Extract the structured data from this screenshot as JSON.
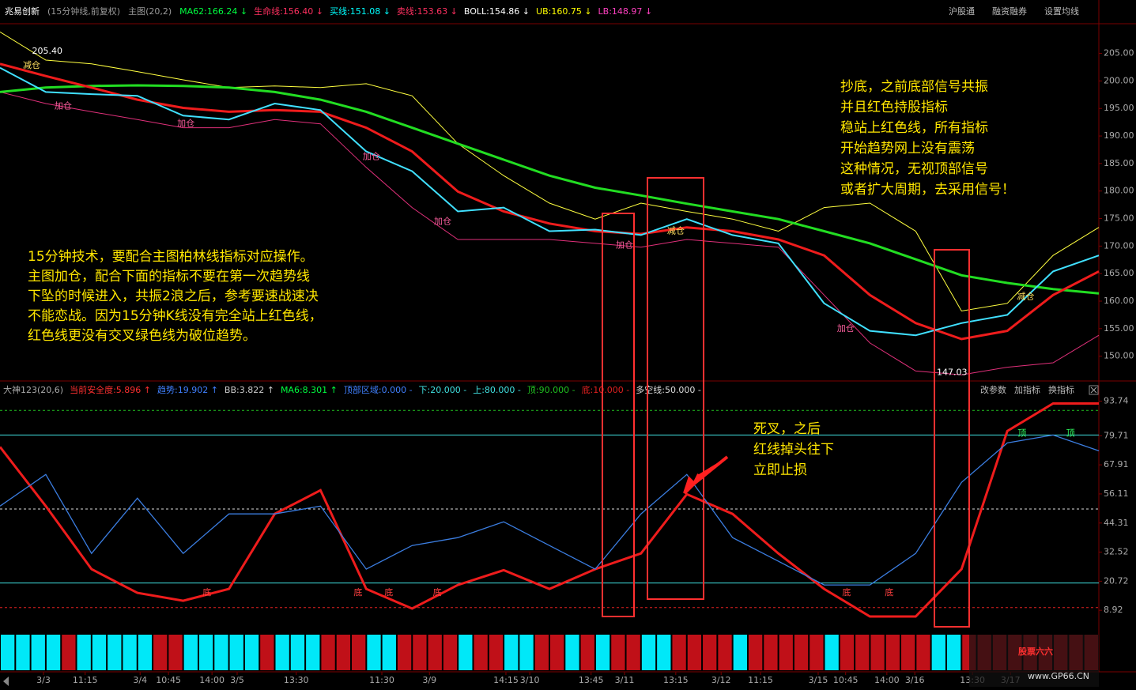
{
  "header": {
    "stock": "兆易创新",
    "period": "(15分钟线,前复权)",
    "main": "主图(20,2)",
    "items": [
      {
        "text": "MA62:166.24 ↓",
        "color": "#00ff40"
      },
      {
        "text": "生命线:156.40 ↓",
        "color": "#ff3060"
      },
      {
        "text": "买线:151.08 ↓",
        "color": "#00ffff"
      },
      {
        "text": "卖线:153.63 ↓",
        "color": "#ff3060"
      },
      {
        "text": "BOLL:154.86 ↓",
        "color": "#ffffff"
      },
      {
        "text": "UB:160.75 ↓",
        "color": "#ffff00"
      },
      {
        "text": "LB:148.97 ↓",
        "color": "#ff40c0"
      }
    ],
    "buttons": [
      "沪股通",
      "融资融券",
      "设置均线"
    ]
  },
  "indicator_header": {
    "items": [
      {
        "text": "大神123(20,6)",
        "color": "#aaaaaa"
      },
      {
        "text": "当前安全度:5.896 ↑",
        "color": "#ff3030"
      },
      {
        "text": "趋势:19.902 ↑",
        "color": "#4080ff"
      },
      {
        "text": "BB:3.822 ↑",
        "color": "#cccccc"
      },
      {
        "text": "MA6:8.301 ↑",
        "color": "#00ff40"
      },
      {
        "text": "顶部区域:0.000 -",
        "color": "#4080ff"
      }
    ],
    "buttons": [
      "改参数",
      "加指标",
      "换指标"
    ]
  },
  "chart_data": [
    {
      "type": "line",
      "xlim": [
        0,
        240
      ],
      "ylim": [
        146.5,
        210.4
      ],
      "grid": false,
      "yticks": [
        {
          "value": 205,
          "label": "205.00"
        },
        {
          "value": 200,
          "label": "200.00"
        },
        {
          "value": 195,
          "label": "195.00"
        },
        {
          "value": 190,
          "label": "190.00"
        },
        {
          "value": 185,
          "label": "185.00"
        },
        {
          "value": 180,
          "label": "180.00"
        },
        {
          "value": 175,
          "label": "175.00"
        },
        {
          "value": 170,
          "label": "170.00"
        },
        {
          "value": 165,
          "label": "165.00"
        },
        {
          "value": 160,
          "label": "160.00"
        },
        {
          "value": 155,
          "label": "155.00"
        },
        {
          "value": 150,
          "label": "150.00"
        }
      ],
      "xticks": [
        {
          "value": 9.5,
          "label": "3/3"
        },
        {
          "value": 18.6,
          "label": "11:15"
        },
        {
          "value": 30.6,
          "label": "3/4"
        },
        {
          "value": 36.8,
          "label": "10:45"
        },
        {
          "value": 46.3,
          "label": "14:00"
        },
        {
          "value": 51.8,
          "label": "3/5"
        },
        {
          "value": 64.7,
          "label": "13:30"
        },
        {
          "value": 83.4,
          "label": "11:30"
        },
        {
          "value": 93.8,
          "label": "3/9"
        },
        {
          "value": 110.5,
          "label": "14:15"
        },
        {
          "value": 115.7,
          "label": "3/10"
        },
        {
          "value": 129.1,
          "label": "13:45"
        },
        {
          "value": 136.4,
          "label": "3/11"
        },
        {
          "value": 147.6,
          "label": "13:15"
        },
        {
          "value": 157.5,
          "label": "3/12"
        },
        {
          "value": 166.1,
          "label": "11:15"
        },
        {
          "value": 178.7,
          "label": "3/15"
        },
        {
          "value": 184.7,
          "label": "10:45"
        },
        {
          "value": 193.7,
          "label": "14:00"
        },
        {
          "value": 199.8,
          "label": "3/16"
        },
        {
          "value": 212.4,
          "label": "13:30"
        },
        {
          "value": 220.7,
          "label": "3/17"
        }
      ],
      "x": [
        0,
        10,
        20,
        30,
        40,
        50,
        60,
        70,
        80,
        90,
        100,
        110,
        120,
        130,
        140,
        150,
        160,
        170,
        180,
        190,
        200,
        210,
        220,
        230,
        240
      ],
      "series": [
        {
          "color": "#ffff40",
          "width": 1,
          "values": [
            208.9,
            203.8,
            203.1,
            201.7,
            200.2,
            198.8,
            199.1,
            198.8,
            199.5,
            197.3,
            188.6,
            182.8,
            177.8,
            174.9,
            177.8,
            176.3,
            174.9,
            172.7,
            177.0,
            177.8,
            172.7,
            158.2,
            159.6,
            168.3,
            173.4
          ]
        },
        {
          "color": "#e0307a",
          "width": 1,
          "values": [
            198.0,
            195.9,
            194.4,
            193.0,
            191.5,
            191.5,
            193.0,
            192.2,
            184.3,
            177.0,
            171.2,
            171.2,
            171.2,
            170.5,
            169.8,
            171.2,
            170.5,
            169.8,
            161.1,
            152.4,
            147.3,
            146.6,
            148.0,
            148.8,
            153.8
          ]
        },
        {
          "color": "#22dd22",
          "width": 3,
          "values": [
            198.0,
            198.8,
            199.1,
            199.2,
            199.1,
            198.8,
            198.0,
            196.6,
            194.4,
            191.5,
            188.6,
            185.7,
            182.8,
            180.6,
            179.2,
            177.7,
            176.3,
            174.9,
            172.7,
            170.5,
            167.6,
            164.7,
            163.3,
            162.2,
            161.4
          ]
        },
        {
          "color": "#ee1c1c",
          "width": 3,
          "values": [
            203.1,
            200.9,
            198.8,
            196.6,
            195.1,
            194.4,
            194.7,
            194.4,
            191.5,
            187.2,
            179.9,
            176.3,
            174.1,
            172.7,
            172.2,
            173.4,
            172.7,
            171.2,
            168.3,
            161.1,
            156.0,
            153.1,
            154.6,
            161.1,
            165.4
          ]
        },
        {
          "color": "#40e0ff",
          "width": 2,
          "values": [
            202.4,
            198.0,
            197.6,
            197.3,
            193.7,
            193.0,
            195.9,
            194.7,
            187.2,
            183.6,
            176.3,
            177.0,
            172.7,
            173.0,
            172.0,
            174.9,
            172.0,
            170.5,
            159.6,
            154.6,
            153.8,
            156.0,
            157.5,
            165.4,
            168.3
          ]
        }
      ],
      "price_labels": [
        {
          "x": 7,
          "value": 205.4,
          "label": "205.40"
        },
        {
          "x": 204.6,
          "value": 147.03,
          "label": "147.03"
        }
      ],
      "signals": [
        {
          "label": "减仓",
          "x": 6.9,
          "value": 202.8,
          "color": "#ffe060"
        },
        {
          "label": "加仓",
          "x": 13.8,
          "value": 195.4,
          "color": "#ff60a0"
        },
        {
          "label": "加仓",
          "x": 40.6,
          "value": 192.2,
          "color": "#ff60a0"
        },
        {
          "label": "加仓",
          "x": 81.1,
          "value": 186.2,
          "color": "#ff60a0"
        },
        {
          "label": "加仓",
          "x": 96.7,
          "value": 174.4,
          "color": "#ff60a0"
        },
        {
          "label": "加仓",
          "x": 136.4,
          "value": 170.1,
          "color": "#ff60a0"
        },
        {
          "label": "减仓",
          "x": 147.6,
          "value": 172.7,
          "color": "#ffe060"
        },
        {
          "label": "加仓",
          "x": 184.7,
          "value": 155.0,
          "color": "#ff60a0"
        },
        {
          "label": "减仓",
          "x": 224,
          "value": 160.8,
          "color": "#ffe060"
        }
      ]
    },
    {
      "type": "line",
      "xlim": [
        0,
        240
      ],
      "ylim": [
        0,
        100
      ],
      "yticks": [
        93.74,
        79.71,
        67.91,
        56.11,
        44.31,
        32.52,
        20.72,
        8.92
      ],
      "levels": [
        {
          "value": 20,
          "label": "下:20.000 -",
          "color": "#40e0e0",
          "dash": false
        },
        {
          "value": 80,
          "label": "上:80.000 -",
          "color": "#40e0e0",
          "dash": false
        },
        {
          "value": 90,
          "label": "顶:90.000 -",
          "color": "#20c020",
          "dash": true
        },
        {
          "value": 10,
          "label": "底:10.000 -",
          "color": "#e02020",
          "dash": true
        },
        {
          "value": 50,
          "label": "多空线:50.000 -",
          "color": "#dddddd",
          "dash": true
        }
      ],
      "x": [
        0,
        10,
        20,
        30,
        40,
        50,
        60,
        70,
        80,
        90,
        100,
        110,
        120,
        130,
        140,
        150,
        160,
        170,
        180,
        190,
        200,
        210,
        220,
        230,
        240
      ],
      "series": [
        {
          "color": "#ee1c1c",
          "width": 3,
          "values": [
            75.2,
            51.2,
            25.6,
            16.0,
            12.8,
            17.6,
            48.0,
            57.6,
            17.6,
            9.6,
            19.2,
            25.2,
            17.6,
            25.6,
            32.0,
            56.0,
            48.0,
            32.0,
            17.6,
            6.4,
            6.4,
            25.6,
            81.6,
            92.8,
            92.8
          ]
        },
        {
          "color": "#3b7de0",
          "width": 1.3,
          "values": [
            51.2,
            64.0,
            32.0,
            54.4,
            32.0,
            48.0,
            48.0,
            51.2,
            25.6,
            35.2,
            38.4,
            44.8,
            35.2,
            25.6,
            48.0,
            64.0,
            38.4,
            28.8,
            19.2,
            19.2,
            32.0,
            60.8,
            76.8,
            80.0,
            73.6
          ]
        }
      ],
      "signals": [
        {
          "label": "底",
          "x": 45.2,
          "value": 16.0,
          "color": "#ff4040"
        },
        {
          "label": "底",
          "x": 78.2,
          "value": 16.0,
          "color": "#ff4040"
        },
        {
          "label": "底",
          "x": 84.9,
          "value": 16.0,
          "color": "#ff4040"
        },
        {
          "label": "底",
          "x": 95.5,
          "value": 16.0,
          "color": "#ff4040"
        },
        {
          "label": "底",
          "x": 184.9,
          "value": 16.0,
          "color": "#ff4040"
        },
        {
          "label": "底",
          "x": 194.2,
          "value": 16.0,
          "color": "#ff4040"
        },
        {
          "label": "顶",
          "x": 223.2,
          "value": 80.6,
          "color": "#30ff60"
        },
        {
          "label": "顶",
          "x": 233.8,
          "value": 80.6,
          "color": "#30ff60"
        }
      ]
    },
    {
      "type": "bar",
      "colors": [
        "#00e8f8",
        "#c01018"
      ],
      "values": [
        1,
        1,
        1,
        1,
        -1,
        1,
        1,
        1,
        1,
        1,
        -1,
        -1,
        1,
        1,
        1,
        1,
        1,
        -1,
        1,
        1,
        1,
        -1,
        -1,
        -1,
        1,
        1,
        -1,
        -1,
        -1,
        -1,
        1,
        -1,
        -1,
        1,
        1,
        -1,
        -1,
        1,
        -1,
        1,
        -1,
        -1,
        1,
        1,
        -1,
        -1,
        -1,
        -1,
        1,
        -1,
        -1,
        -1,
        -1,
        -1,
        1,
        -1,
        -1,
        -1,
        -1,
        -1,
        -1,
        1,
        1,
        -1,
        -1,
        -1,
        -1,
        -1,
        -1,
        -1,
        -1,
        -1
      ]
    }
  ],
  "annotations": [
    {
      "lines": [
        "抄底，之前底部信号共振",
        "并且红色持股指标",
        "稳站上红色线，所有指标",
        "开始趋势网上没有震荡",
        "这种情况，无视顶部信号",
        "或者扩大周期，去采用信号！"
      ]
    },
    {
      "lines": [
        "15分钟技术，要配合主图柏林线指标对应操作。",
        "主图加仓，配合下面的指标不要在第一次趋势线",
        "下坠的时候进入，共振2浪之后，参考要速战速决",
        "不能恋战。因为15分钟K线没有完全站上红色线，",
        "红色线更没有交叉绿色线为破位趋势。"
      ]
    },
    {
      "lines": [
        "死叉，之后",
        "红线掉头往下",
        "立即止损"
      ]
    }
  ],
  "watermark": {
    "title": "股票六六",
    "url": "www.GP66.CN"
  }
}
